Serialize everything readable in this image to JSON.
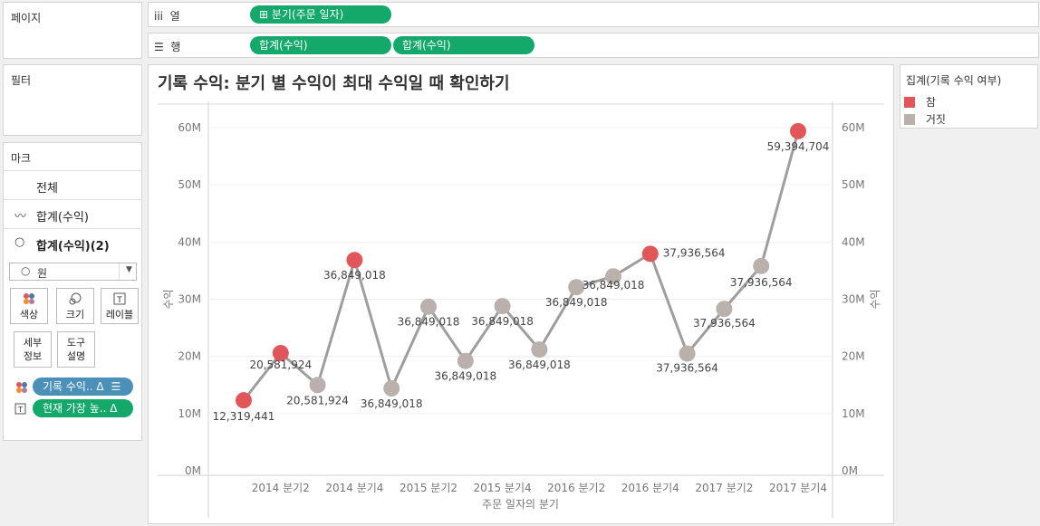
{
  "left_panels": {
    "pages_label": "페이지",
    "filters_label": "필터",
    "marks_label": "마크"
  },
  "shelves": {
    "columns": {
      "label": "열",
      "pills": [
        "⊞ 분기(주문 일자)"
      ]
    },
    "rows": {
      "label": "행",
      "pills": [
        "합계(수익)",
        "합계(수익)"
      ]
    }
  },
  "marks": {
    "all_label": "전체",
    "line_label": "합계(수익)",
    "circle_label": "합계(수익)(2)",
    "mark_type": "원",
    "buttons": {
      "color": "색상",
      "size": "크기",
      "label": "레이블",
      "detail": "세부\n정보",
      "tooltip": "도구\n설명"
    },
    "fields": [
      {
        "text": "기록 수익.. Δ",
        "color": "#4a90b8"
      },
      {
        "text": "현재 가장 높.. Δ",
        "color": "#14a86b"
      }
    ]
  },
  "legend": {
    "title": "집계(기록 수익 여부)",
    "items": [
      {
        "label": "참",
        "color": "#e15759"
      },
      {
        "label": "거짓",
        "color": "#bab0ac"
      }
    ]
  },
  "chart_data": {
    "type": "line",
    "title": "기록 수익: 분기 별 수익이 최대 수익일 때 확인하기",
    "xlabel": "주문 일자의 분기",
    "ylabel": "수익",
    "ylabel_right": "수익",
    "ylim": [
      0,
      60000000
    ],
    "y_ticks": [
      "0M",
      "10M",
      "20M",
      "30M",
      "40M",
      "50M",
      "60M"
    ],
    "x_tick_labels": [
      "2014 분기2",
      "2014 분기4",
      "2015 분기2",
      "2015 분기4",
      "2016 분기2",
      "2016 분기4",
      "2017 분기2",
      "2017 분기4"
    ],
    "line_color": "#9e9e9e",
    "points": [
      {
        "q": "2014 분기1",
        "value": 12319441,
        "record": true,
        "label": "12,319,441"
      },
      {
        "q": "2014 분기2",
        "value": 20581924,
        "record": true,
        "label": "20,581,924"
      },
      {
        "q": "2014 분기3",
        "value": 15000000,
        "record": false,
        "label": "20,581,924"
      },
      {
        "q": "2014 분기4",
        "value": 36849018,
        "record": true,
        "label": "36,849,018"
      },
      {
        "q": "2015 분기1",
        "value": 14400000,
        "record": false,
        "label": "36,849,018"
      },
      {
        "q": "2015 분기2",
        "value": 28700000,
        "record": false,
        "label": "36,849,018"
      },
      {
        "q": "2015 분기3",
        "value": 19200000,
        "record": false,
        "label": "36,849,018"
      },
      {
        "q": "2015 분기4",
        "value": 28800000,
        "record": false,
        "label": "36,849,018"
      },
      {
        "q": "2016 분기1",
        "value": 21200000,
        "record": false,
        "label": "36,849,018"
      },
      {
        "q": "2016 분기2",
        "value": 32100000,
        "record": false,
        "label": "36,849,018"
      },
      {
        "q": "2016 분기3",
        "value": 34000000,
        "record": false,
        "label": "36,849,018"
      },
      {
        "q": "2016 분기4",
        "value": 37936564,
        "record": true,
        "label": "37,936,564"
      },
      {
        "q": "2017 분기1",
        "value": 20500000,
        "record": false,
        "label": "37,936,564"
      },
      {
        "q": "2017 분기2",
        "value": 28300000,
        "record": false,
        "label": "37,936,564"
      },
      {
        "q": "2017 분기3",
        "value": 35800000,
        "record": false,
        "label": "37,936,564"
      },
      {
        "q": "2017 분기4",
        "value": 59394704,
        "record": true,
        "label": "59,394,704"
      }
    ]
  }
}
